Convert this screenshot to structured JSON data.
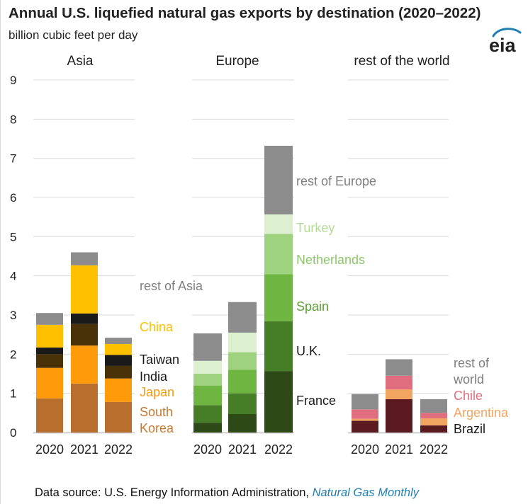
{
  "title": "Annual U.S. liquefied natural gas exports by destination (2020–2022)",
  "subtitle": "billion cubic feet per day",
  "logo_text": "eia",
  "source": {
    "prefix": "Data source: U.S. Energy Information Administration, ",
    "link": "Natural Gas Monthly"
  },
  "colors": {
    "grid": "#d9d9d9",
    "axis": "#bfbfbf",
    "text": "#222222",
    "logo_blue": "#1f7fb3"
  },
  "chart_data": {
    "type": "bar",
    "stacked": true,
    "yaxis": {
      "ylim": [
        0,
        9
      ],
      "ticks": [
        "0",
        "1",
        "2",
        "3",
        "4",
        "5",
        "6",
        "7",
        "8",
        "9"
      ]
    },
    "grid": true,
    "panels": [
      {
        "title": "Asia",
        "categories": [
          "2020",
          "2021",
          "2022"
        ],
        "series": [
          {
            "name": "South Korea",
            "color": "#b86e2c",
            "label_color": "#c47a31",
            "values": [
              0.87,
              1.25,
              0.78
            ]
          },
          {
            "name": "Japan",
            "color": "#ff9a0a",
            "label_color": "#ff9a0a",
            "values": [
              0.78,
              0.97,
              0.6
            ]
          },
          {
            "name": "India",
            "color": "#4a3208",
            "label_color": "#1a1a1a",
            "values": [
              0.35,
              0.55,
              0.32
            ]
          },
          {
            "name": "Taiwan",
            "color": "#1a1a1a",
            "label_color": "#1a1a1a",
            "values": [
              0.17,
              0.27,
              0.28
            ]
          },
          {
            "name": "China",
            "color": "#ffc000",
            "label_color": "#ffc000",
            "values": [
              0.58,
              1.23,
              0.28
            ]
          },
          {
            "name": "rest of Asia",
            "color": "#8c8c8c",
            "label_color": "#7f7f7f",
            "values": [
              0.3,
              0.33,
              0.16
            ]
          }
        ]
      },
      {
        "title": "Europe",
        "categories": [
          "2020",
          "2021",
          "2022"
        ],
        "series": [
          {
            "name": "France",
            "color": "#2d4a16",
            "label_color": "#1a1a1a",
            "values": [
              0.25,
              0.47,
              1.57
            ]
          },
          {
            "name": "U.K.",
            "color": "#467e27",
            "label_color": "#1a1a1a",
            "values": [
              0.45,
              0.53,
              1.27
            ]
          },
          {
            "name": "Spain",
            "color": "#6fb542",
            "label_color": "#5d9e35",
            "values": [
              0.5,
              0.6,
              1.2
            ]
          },
          {
            "name": "Netherlands",
            "color": "#9fd27e",
            "label_color": "#8cc768",
            "values": [
              0.3,
              0.45,
              1.03
            ]
          },
          {
            "name": "Turkey",
            "color": "#dcefcf",
            "label_color": "#b4dc97",
            "values": [
              0.33,
              0.5,
              0.5
            ]
          },
          {
            "name": "rest of Europe",
            "color": "#8c8c8c",
            "label_color": "#7f7f7f",
            "values": [
              0.7,
              0.78,
              1.75
            ]
          }
        ]
      },
      {
        "title": "rest of the world",
        "categories": [
          "2020",
          "2021",
          "2022"
        ],
        "series": [
          {
            "name": "Brazil",
            "color": "#5b1a1f",
            "label_color": "#1a1a1a",
            "values": [
              0.3,
              0.85,
              0.18
            ]
          },
          {
            "name": "Argentina",
            "color": "#f2a560",
            "label_color": "#f2a560",
            "values": [
              0.05,
              0.25,
              0.18
            ]
          },
          {
            "name": "Chile",
            "color": "#e06e7e",
            "label_color": "#e06e7e",
            "values": [
              0.24,
              0.35,
              0.14
            ]
          },
          {
            "name": "rest of world",
            "color": "#8c8c8c",
            "label_color": "#7f7f7f",
            "values": [
              0.39,
              0.42,
              0.35
            ]
          }
        ]
      }
    ]
  }
}
